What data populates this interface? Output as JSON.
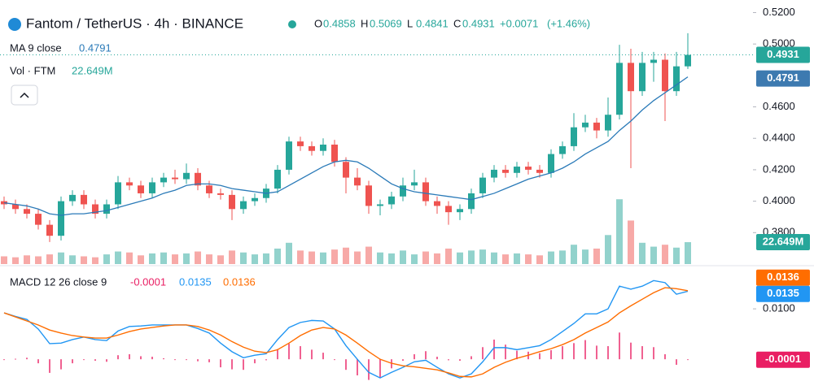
{
  "header": {
    "title": "Fantom / TetherUS · 4h · BINANCE",
    "ohlc": [
      {
        "key": "O",
        "value": 0.4858
      },
      {
        "key": "H",
        "value": 0.5069
      },
      {
        "key": "L",
        "value": 0.4841
      },
      {
        "key": "C",
        "value": 0.4931
      }
    ],
    "change": "+0.0071",
    "change_pct": "(+1.46%)",
    "ma_legend": "MA 9 close",
    "ma_value": 0.4791,
    "vol_legend": "Vol · FTM",
    "vol_value": "22.649M",
    "macd_legend": "MACD 12 26 close 9",
    "macd_values": [
      -0.0001,
      0.0135,
      0.0136
    ]
  },
  "chart_data": [
    {
      "type": "candlestick",
      "up_color": "#26a69a",
      "down_color": "#ef5350",
      "ylim": [
        0.36,
        0.528
      ],
      "yticks": [
        {
          "value": 0.52,
          "label": "0.5200"
        },
        {
          "value": 0.5,
          "label": "0.5000"
        },
        {
          "value": 0.46,
          "label": "0.4600"
        },
        {
          "value": 0.44,
          "label": "0.4400"
        },
        {
          "value": 0.42,
          "label": "0.4200"
        },
        {
          "value": 0.4,
          "label": "0.4000"
        },
        {
          "value": 0.38,
          "label": "0.3800"
        }
      ],
      "open": [
        0.4,
        0.398,
        0.395,
        0.392,
        0.385,
        0.378,
        0.4,
        0.404,
        0.398,
        0.392,
        0.398,
        0.412,
        0.41,
        0.405,
        0.412,
        0.415,
        0.414,
        0.418,
        0.41,
        0.405,
        0.404,
        0.395,
        0.4,
        0.402,
        0.408,
        0.42,
        0.438,
        0.435,
        0.432,
        0.436,
        0.425,
        0.415,
        0.41,
        0.397,
        0.398,
        0.403,
        0.41,
        0.412,
        0.4,
        0.397,
        0.393,
        0.395,
        0.405,
        0.415,
        0.42,
        0.418,
        0.422,
        0.42,
        0.418,
        0.43,
        0.435,
        0.447,
        0.45,
        0.445,
        0.455,
        0.488,
        0.47,
        0.488,
        0.49,
        0.47,
        0.4858
      ],
      "high": [
        0.403,
        0.401,
        0.398,
        0.395,
        0.388,
        0.403,
        0.407,
        0.407,
        0.401,
        0.401,
        0.416,
        0.415,
        0.413,
        0.415,
        0.418,
        0.42,
        0.424,
        0.421,
        0.413,
        0.408,
        0.407,
        0.403,
        0.405,
        0.411,
        0.423,
        0.441,
        0.441,
        0.438,
        0.44,
        0.439,
        0.428,
        0.421,
        0.413,
        0.401,
        0.406,
        0.415,
        0.42,
        0.415,
        0.403,
        0.4,
        0.398,
        0.408,
        0.418,
        0.423,
        0.423,
        0.425,
        0.425,
        0.423,
        0.433,
        0.438,
        0.456,
        0.455,
        0.453,
        0.466,
        0.4995,
        0.497,
        0.495,
        0.495,
        0.494,
        0.495,
        0.5069
      ],
      "low": [
        0.395,
        0.392,
        0.389,
        0.382,
        0.374,
        0.375,
        0.397,
        0.395,
        0.389,
        0.389,
        0.395,
        0.407,
        0.402,
        0.402,
        0.409,
        0.411,
        0.411,
        0.407,
        0.402,
        0.401,
        0.388,
        0.392,
        0.397,
        0.399,
        0.405,
        0.417,
        0.432,
        0.429,
        0.429,
        0.422,
        0.405,
        0.407,
        0.392,
        0.391,
        0.395,
        0.4,
        0.407,
        0.397,
        0.392,
        0.385,
        0.388,
        0.392,
        0.402,
        0.412,
        0.415,
        0.415,
        0.417,
        0.415,
        0.415,
        0.427,
        0.432,
        0.444,
        0.44,
        0.441,
        0.452,
        0.421,
        0.467,
        0.476,
        0.451,
        0.467,
        0.4841
      ],
      "close": [
        0.398,
        0.395,
        0.392,
        0.385,
        0.378,
        0.4,
        0.404,
        0.398,
        0.392,
        0.398,
        0.412,
        0.41,
        0.405,
        0.412,
        0.415,
        0.414,
        0.418,
        0.41,
        0.405,
        0.404,
        0.395,
        0.4,
        0.402,
        0.408,
        0.42,
        0.438,
        0.435,
        0.432,
        0.436,
        0.425,
        0.415,
        0.41,
        0.397,
        0.398,
        0.403,
        0.41,
        0.412,
        0.4,
        0.397,
        0.393,
        0.395,
        0.405,
        0.415,
        0.42,
        0.418,
        0.422,
        0.42,
        0.418,
        0.43,
        0.435,
        0.447,
        0.45,
        0.445,
        0.455,
        0.488,
        0.47,
        0.488,
        0.49,
        0.47,
        0.4858,
        0.4931
      ],
      "ma": {
        "name": "MA 9 close",
        "color": "#2a7ab8",
        "values": [
          0.399,
          0.398,
          0.397,
          0.395,
          0.392,
          0.391,
          0.392,
          0.392,
          0.393,
          0.394,
          0.396,
          0.398,
          0.4,
          0.402,
          0.405,
          0.407,
          0.41,
          0.411,
          0.411,
          0.41,
          0.408,
          0.407,
          0.406,
          0.405,
          0.406,
          0.41,
          0.414,
          0.418,
          0.422,
          0.425,
          0.426,
          0.425,
          0.421,
          0.416,
          0.411,
          0.408,
          0.406,
          0.405,
          0.404,
          0.403,
          0.402,
          0.401,
          0.403,
          0.405,
          0.408,
          0.411,
          0.414,
          0.416,
          0.418,
          0.421,
          0.425,
          0.43,
          0.434,
          0.438,
          0.445,
          0.451,
          0.458,
          0.464,
          0.469,
          0.474,
          0.4791
        ]
      },
      "price_labels": [
        {
          "value": 0.4931,
          "label": "0.4931",
          "color": "#26a69a"
        },
        {
          "value": 0.4791,
          "label": "0.4791",
          "color": "#3d7ab0"
        }
      ]
    },
    {
      "type": "volume",
      "ylim": [
        0,
        273
      ],
      "values": [
        8,
        7,
        9,
        8,
        10,
        12,
        9,
        8,
        7,
        10,
        13,
        12,
        9,
        11,
        12,
        10,
        11,
        13,
        10,
        9,
        14,
        12,
        10,
        11,
        16,
        22,
        14,
        13,
        12,
        15,
        17,
        13,
        18,
        12,
        11,
        14,
        10,
        13,
        11,
        16,
        12,
        14,
        15,
        12,
        10,
        11,
        10,
        9,
        13,
        14,
        20,
        15,
        16,
        30,
        67,
        45,
        22,
        18,
        20,
        17,
        22.649
      ],
      "value_label": {
        "value": 22.649,
        "label": "22.649M",
        "color": "#26a69a"
      }
    },
    {
      "type": "macd",
      "ylim": [
        -0.0061,
        0.0184
      ],
      "yticks": [
        {
          "value": 0.01,
          "label": "0.0100"
        }
      ],
      "series": [
        {
          "name": "MACD",
          "color": "#2196f3",
          "values": [
            0.0092,
            0.0085,
            0.0079,
            0.006,
            0.0031,
            0.0032,
            0.0039,
            0.0044,
            0.0039,
            0.0037,
            0.0056,
            0.0065,
            0.0066,
            0.0068,
            0.0068,
            0.0068,
            0.0068,
            0.0061,
            0.0052,
            0.0032,
            0.0015,
            0.0003,
            0.0008,
            0.0011,
            0.0039,
            0.0063,
            0.0073,
            0.0077,
            0.0076,
            0.006,
            0.0027,
            0.0,
            -0.0026,
            -0.0037,
            -0.0026,
            -0.0016,
            -0.0005,
            -0.0002,
            -0.0016,
            -0.0029,
            -0.0037,
            -0.0029,
            -0.0005,
            0.0023,
            0.0023,
            0.0019,
            0.0023,
            0.0027,
            0.0039,
            0.0055,
            0.0071,
            0.009,
            0.009,
            0.01,
            0.0145,
            0.0139,
            0.0145,
            0.0156,
            0.0152,
            0.0129,
            0.0135
          ]
        },
        {
          "name": "Signal",
          "color": "#ff6d00",
          "values": [
            0.0092,
            0.0084,
            0.0076,
            0.0068,
            0.0058,
            0.0052,
            0.0047,
            0.0044,
            0.0042,
            0.0042,
            0.0048,
            0.0055,
            0.006,
            0.0063,
            0.0066,
            0.0068,
            0.0068,
            0.0065,
            0.0058,
            0.0048,
            0.0035,
            0.0024,
            0.0016,
            0.0013,
            0.0019,
            0.0032,
            0.0047,
            0.0058,
            0.0063,
            0.006,
            0.0048,
            0.0032,
            0.0015,
            0.0,
            -0.0008,
            -0.0013,
            -0.0015,
            -0.0018,
            -0.0021,
            -0.0027,
            -0.0034,
            -0.0035,
            -0.0029,
            -0.0016,
            -0.0006,
            0.0002,
            0.0008,
            0.0015,
            0.0021,
            0.0029,
            0.0039,
            0.0052,
            0.0063,
            0.0074,
            0.0092,
            0.0106,
            0.0119,
            0.0132,
            0.0142,
            0.014,
            0.0136
          ]
        }
      ],
      "histogram": {
        "name": "Histogram",
        "color": "#e91e63",
        "values": [
          0,
          0.0001,
          0.0003,
          -0.0008,
          -0.0027,
          -0.002,
          -0.0008,
          0,
          -0.0003,
          -0.0005,
          0.0008,
          0.001,
          0.0006,
          0.0005,
          0.0002,
          0,
          0,
          -0.0004,
          -0.0006,
          -0.0016,
          -0.002,
          -0.0021,
          -0.0008,
          -0.0002,
          0.002,
          0.0031,
          0.0026,
          0.0019,
          0.0013,
          0,
          -0.0021,
          -0.0032,
          -0.0041,
          -0.0037,
          -0.0018,
          -0.0003,
          0.001,
          0.0016,
          0.0005,
          -0.0002,
          -0.0003,
          0.0006,
          0.0024,
          0.0039,
          0.0029,
          0.0017,
          0.0015,
          0.0012,
          0.0018,
          0.0026,
          0.0032,
          0.0038,
          0.0027,
          0.0026,
          0.0053,
          0.0033,
          0.0026,
          0.0024,
          0.001,
          -0.0011,
          -0.0001
        ]
      },
      "price_labels": [
        {
          "value": 0.0136,
          "label": "0.0136",
          "color": "#ff6d00"
        },
        {
          "value": 0.0135,
          "label": "0.0135",
          "color": "#2196f3"
        },
        {
          "value": -0.0001,
          "label": "-0.0001",
          "color": "#e91e63"
        }
      ]
    }
  ]
}
